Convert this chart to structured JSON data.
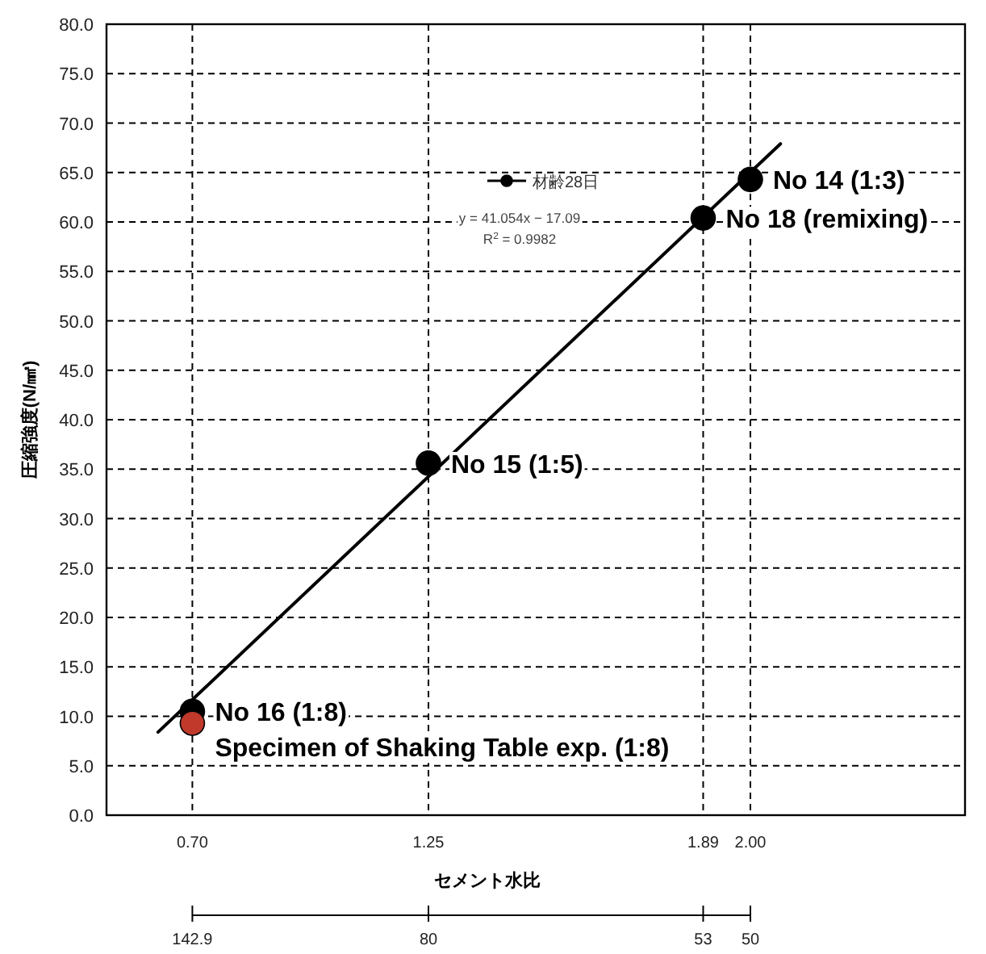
{
  "chart_data": {
    "type": "scatter",
    "xlabel": "セメント水比",
    "ylabel": "圧縮強度(N/㎟)",
    "xlim": [
      0.5,
      2.5
    ],
    "ylim": [
      0,
      80
    ],
    "xticks": [
      {
        "value": 0.7,
        "label": "0.70"
      },
      {
        "value": 1.25,
        "label": "1.25"
      },
      {
        "value": 1.89,
        "label": "1.89"
      },
      {
        "value": 2.0,
        "label": "2.00"
      }
    ],
    "yticks": [
      {
        "value": 0,
        "label": "0.0"
      },
      {
        "value": 5,
        "label": "5.0"
      },
      {
        "value": 10,
        "label": "10.0"
      },
      {
        "value": 15,
        "label": "15.0"
      },
      {
        "value": 20,
        "label": "20.0"
      },
      {
        "value": 25,
        "label": "25.0"
      },
      {
        "value": 30,
        "label": "30.0"
      },
      {
        "value": 35,
        "label": "35.0"
      },
      {
        "value": 40,
        "label": "40.0"
      },
      {
        "value": 45,
        "label": "45.0"
      },
      {
        "value": 50,
        "label": "50.0"
      },
      {
        "value": 55,
        "label": "55.0"
      },
      {
        "value": 60,
        "label": "60.0"
      },
      {
        "value": 65,
        "label": "65.0"
      },
      {
        "value": 70,
        "label": "70.0"
      },
      {
        "value": 75,
        "label": "75.0"
      },
      {
        "value": 80,
        "label": "80.0"
      }
    ],
    "grid": true,
    "legend": "top",
    "marker": "circle",
    "series": [
      {
        "name": "材齢28日",
        "color": "#000000",
        "x": [
          0.7,
          1.25,
          1.89,
          2.0
        ],
        "values": [
          10.5,
          35.6,
          60.4,
          64.3
        ]
      },
      {
        "color": "#c0392b",
        "x": [
          0.7
        ],
        "values": [
          9.3
        ]
      },
      {
        "type": "line",
        "color": "#000000",
        "line_style": "solid",
        "marker": "none",
        "x": [
          0.62,
          2.07
        ],
        "values": [
          8.4,
          67.9
        ]
      }
    ],
    "annotations": [
      "y = 41.054x − 17.09",
      "R$^{2}$ = 0.9982",
      {
        "text": "No 14 (1:3)",
        "x": 2.0,
        "y": 64.3
      },
      {
        "text": "No 18 (remixing)",
        "x": 1.89,
        "y": 60.4
      },
      {
        "text": "No 15 (1:5)",
        "x": 1.25,
        "y": 35.6
      },
      {
        "text": "No 16 (1:8)",
        "x": 0.7,
        "y": 10.5
      },
      {
        "text": "Specimen of Shaking Table exp.  (1:8)",
        "x": 0.7,
        "y": 9.3
      },
      {
        "text": "142.9",
        "x": 0.7
      },
      {
        "text": "80",
        "x": 1.25
      },
      {
        "text": "53",
        "x": 1.89
      },
      {
        "text": "50",
        "x": 2.0
      }
    ]
  }
}
